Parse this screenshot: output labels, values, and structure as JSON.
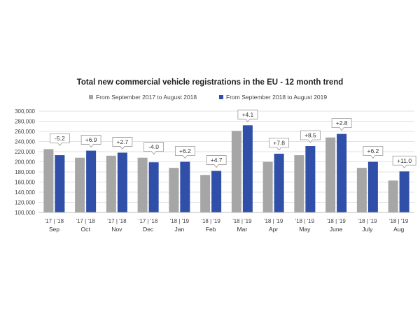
{
  "chart_data": {
    "type": "bar",
    "title": "Total new commercial vehicle registrations in the EU - 12 month trend",
    "xlabel": "",
    "ylabel": "",
    "ylim": [
      100000,
      300000
    ],
    "y_ticks": [
      "100,000",
      "120,000",
      "140,000",
      "160,000",
      "180,000",
      "200,000",
      "220,000",
      "240,000",
      "260,000",
      "280,000",
      "300,000"
    ],
    "y_tick_values": [
      100000,
      120000,
      140000,
      160000,
      180000,
      200000,
      220000,
      240000,
      260000,
      280000,
      300000
    ],
    "grid": true,
    "legend_position": "top",
    "categories": [
      "Sep",
      "Oct",
      "Nov",
      "Dec",
      "Jan",
      "Feb",
      "Mar",
      "Apr",
      "May",
      "June",
      "July",
      "Aug"
    ],
    "year_labels": [
      "'17 | '18",
      "'17 | '18",
      "'17 | '18",
      "'17 | '18",
      "'18 | '19",
      "'18 | '19",
      "'18 | '19",
      "'18 | '19",
      "'18 | '19",
      "'18 | '19",
      "'18 | '19",
      "'18 | '19"
    ],
    "series": [
      {
        "name": "From September 2017 to August 2018",
        "color": "#a6a6a6",
        "values": [
          225000,
          208000,
          212000,
          208000,
          188000,
          174000,
          261000,
          200000,
          213000,
          248000,
          188000,
          163000
        ]
      },
      {
        "name": "From September 2018 to August 2019",
        "color": "#2f4fa8",
        "values": [
          213000,
          222000,
          218000,
          199000,
          200000,
          182000,
          272000,
          216000,
          231000,
          255000,
          200000,
          181000
        ]
      }
    ],
    "annotations": [
      "-5.2",
      "+6.9",
      "+2.7",
      "-4.0",
      "+6.2",
      "+4.7",
      "+4.1",
      "+7.8",
      "+8.5",
      "+2.8",
      "+6.2",
      "+11.0"
    ]
  }
}
